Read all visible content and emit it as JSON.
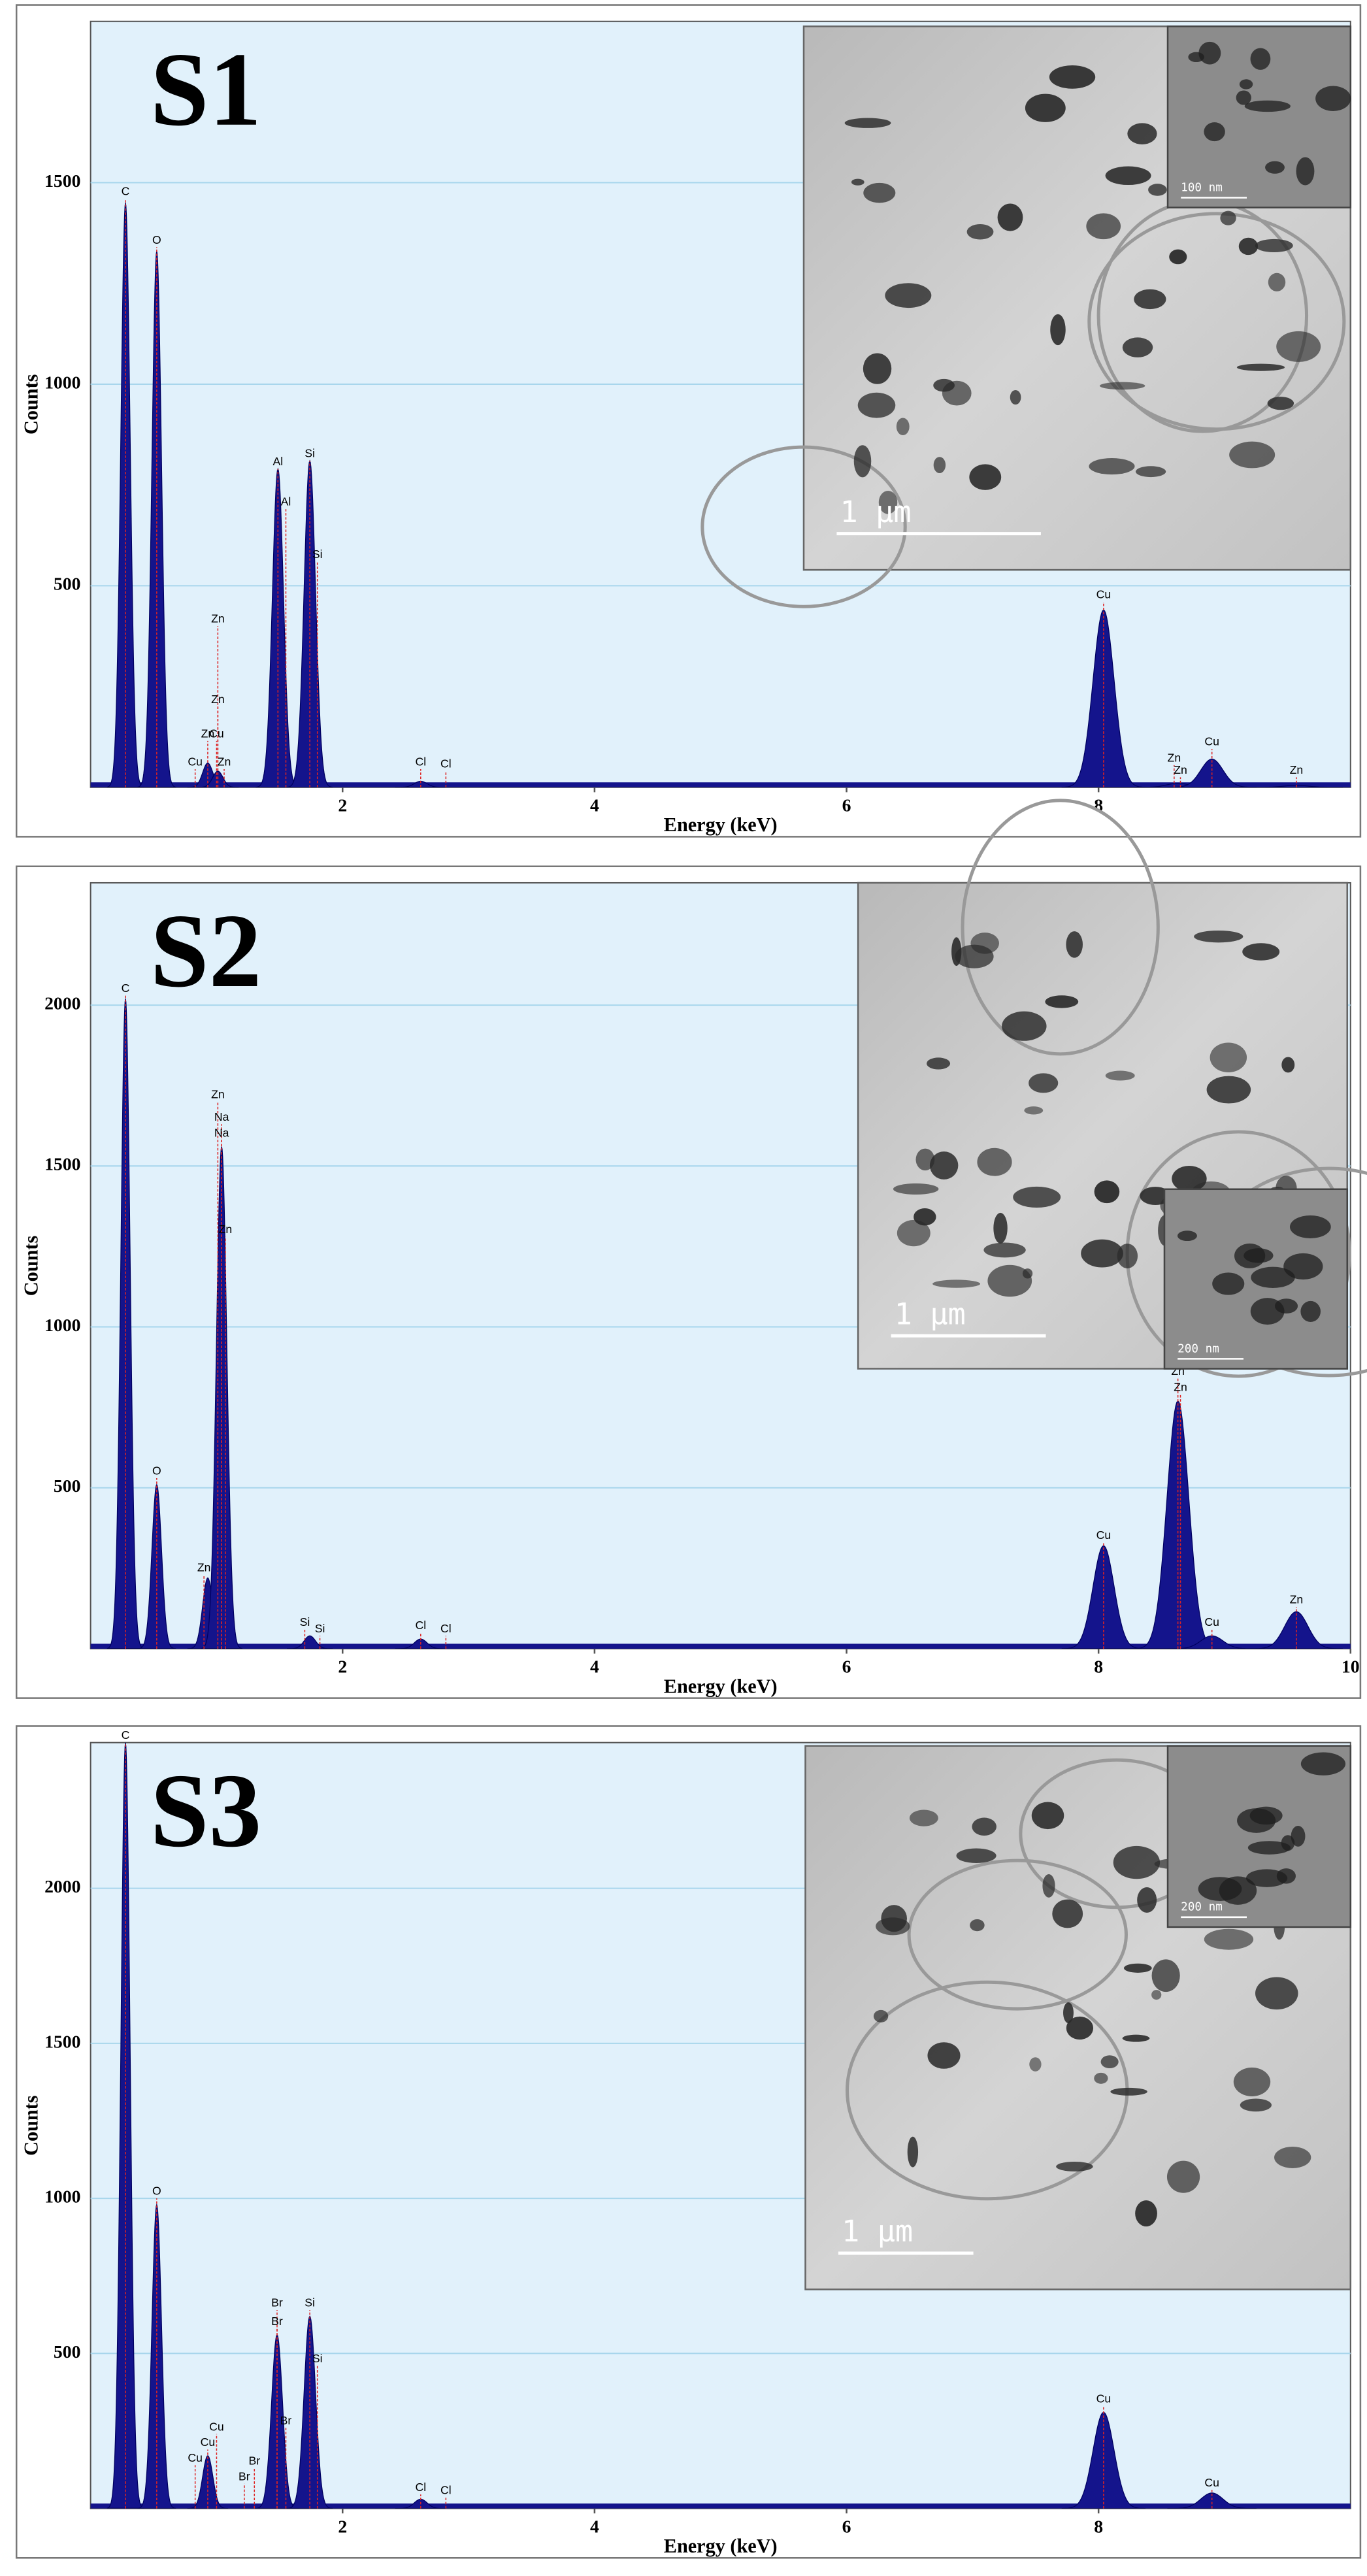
{
  "chart_data": [
    {
      "type": "spectrum",
      "title": "S1",
      "xlabel": "Energy (keV)",
      "ylabel": "Counts",
      "xlim": [
        0,
        10
      ],
      "xticks": [
        2,
        4,
        6,
        8
      ],
      "ylim": [
        0,
        1900
      ],
      "yticks": [
        500,
        1000,
        1500
      ],
      "grid": true,
      "color": "#14148c",
      "x": [
        0.277,
        0.525,
        0.93,
        1.01,
        1.487,
        1.74,
        2.62,
        8.04,
        8.63,
        8.9,
        9.57
      ],
      "values": [
        1450,
        1330,
        60,
        40,
        790,
        810,
        15,
        440,
        10,
        70,
        5
      ],
      "annotations": [
        {
          "text": "C",
          "x": 0.277,
          "y": 1460
        },
        {
          "text": "O",
          "x": 0.525,
          "y": 1340
        },
        {
          "text": "Zn",
          "x": 1.01,
          "y": 400
        },
        {
          "text": "Zn",
          "x": 1.01,
          "y": 200
        },
        {
          "text": "Zn",
          "x": 0.93,
          "y": 115
        },
        {
          "text": "Cu",
          "x": 1.0,
          "y": 115
        },
        {
          "text": "Cu",
          "x": 0.83,
          "y": 45
        },
        {
          "text": "Zn",
          "x": 1.06,
          "y": 45
        },
        {
          "text": "Al",
          "x": 1.487,
          "y": 790
        },
        {
          "text": "Al",
          "x": 1.55,
          "y": 690
        },
        {
          "text": "Si",
          "x": 1.74,
          "y": 810
        },
        {
          "text": "Si",
          "x": 1.8,
          "y": 560
        },
        {
          "text": "Cl",
          "x": 2.62,
          "y": 45
        },
        {
          "text": "Cl",
          "x": 2.82,
          "y": 40
        },
        {
          "text": "Cu",
          "x": 8.04,
          "y": 460
        },
        {
          "text": "Zn",
          "x": 8.6,
          "y": 55
        },
        {
          "text": "Zn",
          "x": 8.65,
          "y": 25
        },
        {
          "text": "Cu",
          "x": 8.9,
          "y": 95
        },
        {
          "text": "Zn",
          "x": 9.57,
          "y": 25
        }
      ],
      "inset": {
        "scale_bar": "1 μm",
        "zoom_scale_bar": "100 nm"
      }
    },
    {
      "type": "spectrum",
      "title": "S2",
      "xlabel": "Energy (keV)",
      "ylabel": "Counts",
      "xlim": [
        0,
        10
      ],
      "xticks": [
        2,
        4,
        6,
        8,
        10
      ],
      "ylim": [
        0,
        2380
      ],
      "yticks": [
        500,
        1000,
        1500,
        2000
      ],
      "grid": true,
      "color": "#14148c",
      "x": [
        0.277,
        0.525,
        0.93,
        1.04,
        1.74,
        2.62,
        8.04,
        8.63,
        8.9,
        9.57
      ],
      "values": [
        2020,
        510,
        220,
        1560,
        40,
        30,
        320,
        770,
        40,
        115
      ],
      "annotations": [
        {
          "text": "C",
          "x": 0.277,
          "y": 2030
        },
        {
          "text": "O",
          "x": 0.525,
          "y": 530
        },
        {
          "text": "Zn",
          "x": 1.01,
          "y": 1700
        },
        {
          "text": "Na",
          "x": 1.04,
          "y": 1630
        },
        {
          "text": "Na",
          "x": 1.04,
          "y": 1580
        },
        {
          "text": "Zn",
          "x": 1.07,
          "y": 1280
        },
        {
          "text": "Zn",
          "x": 0.9,
          "y": 230
        },
        {
          "text": "Si",
          "x": 1.7,
          "y": 60
        },
        {
          "text": "Si",
          "x": 1.82,
          "y": 40
        },
        {
          "text": "Cl",
          "x": 2.62,
          "y": 50
        },
        {
          "text": "Cl",
          "x": 2.82,
          "y": 40
        },
        {
          "text": "Cu",
          "x": 8.04,
          "y": 330
        },
        {
          "text": "Zn",
          "x": 8.63,
          "y": 840
        },
        {
          "text": "Zn",
          "x": 8.65,
          "y": 790
        },
        {
          "text": "Cu",
          "x": 8.9,
          "y": 60
        },
        {
          "text": "Zn",
          "x": 9.57,
          "y": 130
        }
      ],
      "inset": {
        "scale_bar": "1 μm",
        "zoom_scale_bar": "200 nm"
      }
    },
    {
      "type": "spectrum",
      "title": "S3",
      "xlabel": "Energy (keV)",
      "ylabel": "Counts",
      "xlim": [
        0,
        10
      ],
      "xticks": [
        2,
        4,
        6,
        8
      ],
      "ylim": [
        0,
        2470
      ],
      "yticks": [
        500,
        1000,
        1500,
        2000
      ],
      "grid": true,
      "color": "#14148c",
      "x": [
        0.277,
        0.525,
        0.93,
        1.48,
        1.74,
        2.62,
        8.04,
        8.9
      ],
      "values": [
        2470,
        980,
        170,
        560,
        620,
        30,
        310,
        50
      ],
      "annotations": [
        {
          "text": "C",
          "x": 0.277,
          "y": 2470
        },
        {
          "text": "O",
          "x": 0.525,
          "y": 1000
        },
        {
          "text": "Cu",
          "x": 0.93,
          "y": 190
        },
        {
          "text": "Cu",
          "x": 1.0,
          "y": 240
        },
        {
          "text": "Cu",
          "x": 0.83,
          "y": 140
        },
        {
          "text": "Br",
          "x": 1.48,
          "y": 640
        },
        {
          "text": "Br",
          "x": 1.48,
          "y": 580
        },
        {
          "text": "Br",
          "x": 1.55,
          "y": 260
        },
        {
          "text": "Br",
          "x": 1.3,
          "y": 130
        },
        {
          "text": "Br",
          "x": 1.22,
          "y": 80
        },
        {
          "text": "Si",
          "x": 1.74,
          "y": 640
        },
        {
          "text": "Si",
          "x": 1.8,
          "y": 460
        },
        {
          "text": "Cl",
          "x": 2.62,
          "y": 45
        },
        {
          "text": "Cl",
          "x": 2.82,
          "y": 35
        },
        {
          "text": "Cu",
          "x": 8.04,
          "y": 330
        },
        {
          "text": "Cu",
          "x": 8.9,
          "y": 60
        }
      ],
      "inset": {
        "scale_bar": "1 μm",
        "zoom_scale_bar": "200 nm"
      }
    }
  ]
}
